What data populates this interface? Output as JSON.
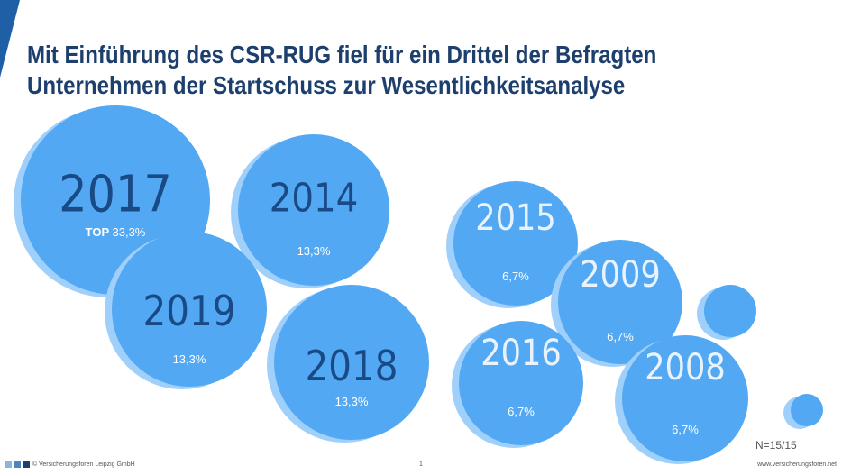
{
  "title_lines": [
    "Mit Einführung des CSR-RUG fiel für ein Drittel der Befragten",
    "Unternehmen der Startschuss zur Wesentlichkeitsanalyse"
  ],
  "chart_data": {
    "type": "bubble",
    "title": "Mit Einführung des CSR-RUG fiel für ein Drittel der Befragten Unternehmen der Startschuss zur Wesentlichkeitsanalyse",
    "unit": "%",
    "top_label": "TOP",
    "points": [
      {
        "year": "2017",
        "label": "33,3%",
        "value": 33.3,
        "top": true
      },
      {
        "year": "2014",
        "label": "13,3%",
        "value": 13.3
      },
      {
        "year": "2019",
        "label": "13,3%",
        "value": 13.3
      },
      {
        "year": "2018",
        "label": "13,3%",
        "value": 13.3
      },
      {
        "year": "2015",
        "label": "6,7%",
        "value": 6.7
      },
      {
        "year": "2009",
        "label": "6,7%",
        "value": 6.7
      },
      {
        "year": "2016",
        "label": "6,7%",
        "value": 6.7
      },
      {
        "year": "2008",
        "label": "6,7%",
        "value": 6.7
      },
      {
        "year": "",
        "label": "",
        "value": null
      },
      {
        "year": "",
        "label": "",
        "value": null
      }
    ],
    "n_note": "N=15/15"
  },
  "colors": {
    "bubble": "#52a8f2",
    "bubble_shadow": "#9fd0fb",
    "text_dark": "#1a4a86",
    "text_light": "#e8f3fd",
    "title": "#1d3f6e",
    "accent": "#1f5fa6"
  },
  "footer": {
    "copyright": "© Versicherungsforen Leipzig GmbH",
    "page": "1",
    "url": "www.versicherungsforen.net"
  }
}
